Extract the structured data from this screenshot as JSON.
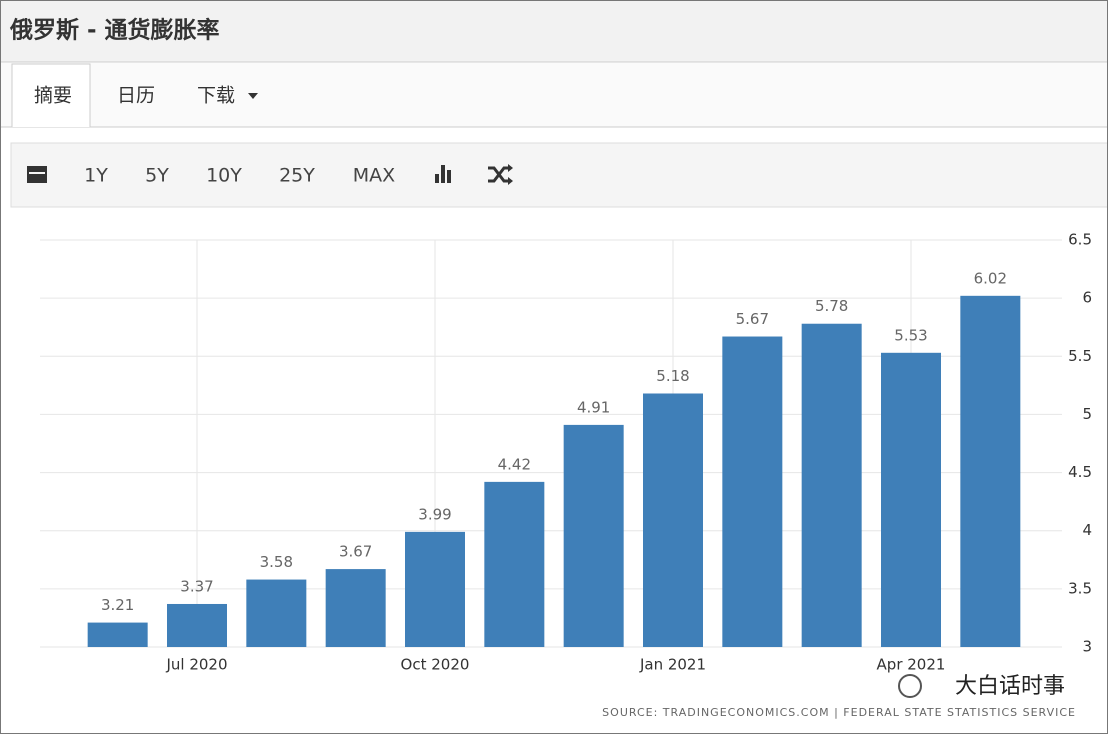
{
  "header": {
    "title": "俄罗斯 - 通货膨胀率"
  },
  "tabs": [
    "摘要",
    "日历",
    "下载"
  ],
  "toolbar": {
    "ranges": [
      "1Y",
      "5Y",
      "10Y",
      "25Y",
      "MAX"
    ]
  },
  "chart_data": {
    "type": "bar",
    "categories": [
      null,
      "Jul 2020",
      null,
      null,
      "Oct 2020",
      null,
      null,
      "Jan 2021",
      null,
      null,
      "Apr 2021",
      null
    ],
    "values": [
      3.21,
      3.37,
      3.58,
      3.67,
      3.99,
      4.42,
      4.91,
      5.18,
      5.67,
      5.78,
      5.53,
      6.02
    ],
    "color": "#3f7fb8",
    "ylim": [
      3,
      6.5
    ],
    "yticks": [
      3,
      3.5,
      4,
      4.5,
      5,
      5.5,
      6,
      6.5
    ],
    "grid": true,
    "source": "SOURCE: TRADINGECONOMICS.COM | FEDERAL STATE STATISTICS SERVICE"
  },
  "watermark": "大白话时事"
}
